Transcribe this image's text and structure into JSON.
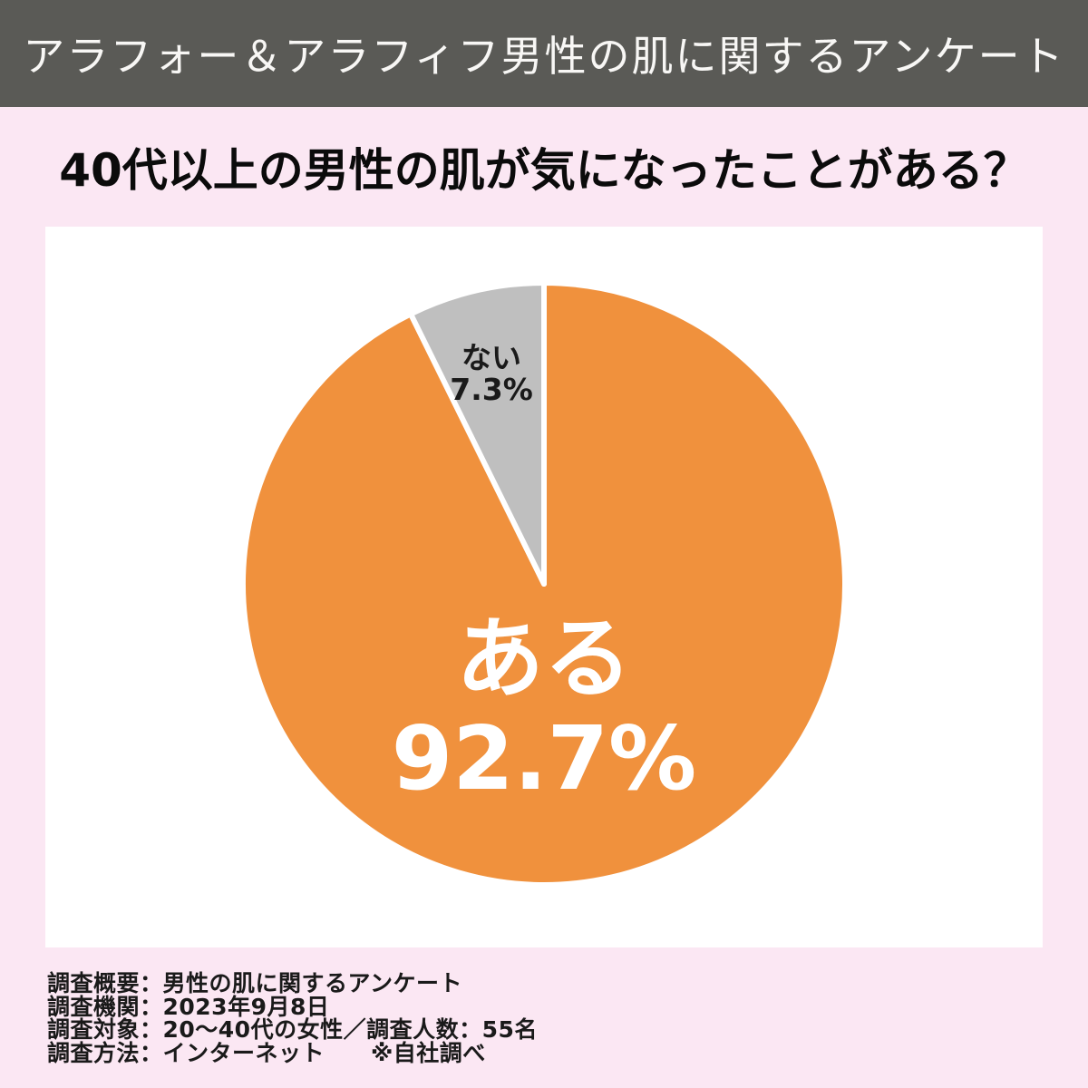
{
  "header": {
    "title": "アラフォー＆アラフィフ男性の肌に関するアンケート",
    "bg_color": "#5A5A56",
    "text_color": "#F8F7F5"
  },
  "question": {
    "text": "40代以上の男性の肌が気になったことがある？"
  },
  "page": {
    "bg_color": "#FBE7F3",
    "card_bg_color": "#FFFFFF"
  },
  "chart_data": {
    "type": "pie",
    "title": "40代以上の男性の肌が気になったことがある？",
    "start_angle_deg": 0,
    "direction": "clockwise",
    "separator_color": "#FFFFFF",
    "categories": [
      "ある",
      "ない"
    ],
    "values": [
      92.7,
      7.3
    ],
    "slices": [
      {
        "label": "ある",
        "value": 92.7,
        "display": "92.7%",
        "color": "#F0913D",
        "label_color": "#FFFFFF"
      },
      {
        "label": "ない",
        "value": 7.3,
        "display": "7.3%",
        "color": "#BFBFBF",
        "label_color": "#1A1A1A"
      }
    ]
  },
  "footer": {
    "lines": [
      "調査概要：男性の肌に関するアンケート",
      "調査機関：2023年9月8日",
      "調査対象：20〜40代の女性／調査人数：55名",
      "調査方法：インターネット　　※自社調べ"
    ]
  }
}
